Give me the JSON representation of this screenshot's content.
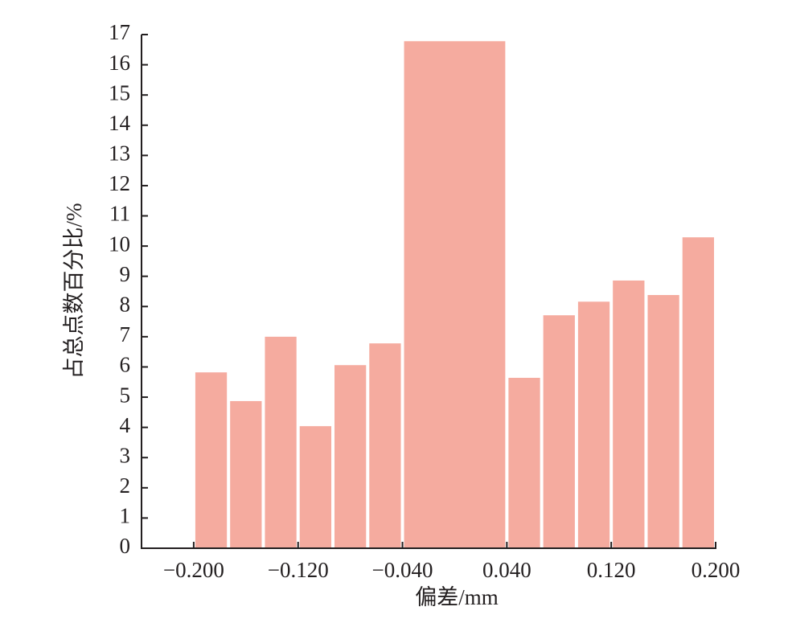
{
  "chart_data": {
    "type": "histogram",
    "y_label": "占总点数百分比/%",
    "x_label": "偏差/mm",
    "bins": [
      -0.2,
      -0.17333,
      -0.14667,
      -0.12,
      -0.09333,
      -0.06667,
      -0.04,
      0.04,
      0.06667,
      0.09333,
      0.12,
      0.14667,
      0.17333,
      0.2
    ],
    "values": [
      5.82,
      4.87,
      7.0,
      4.04,
      6.06,
      6.78,
      16.78,
      5.64,
      7.71,
      8.16,
      8.86,
      8.38,
      10.29
    ],
    "color": "#f5ab9f",
    "xlim": [
      -0.24,
      0.2
    ],
    "ylim": [
      0,
      17
    ],
    "xticks": [
      {
        "value": -0.2,
        "label": "−0.200"
      },
      {
        "value": -0.12,
        "label": "−0.120"
      },
      {
        "value": -0.04,
        "label": "−0.040"
      },
      {
        "value": 0.04,
        "label": "0.040"
      },
      {
        "value": 0.12,
        "label": "0.120"
      },
      {
        "value": 0.2,
        "label": "0.200"
      }
    ],
    "yticks": [
      0,
      1,
      2,
      3,
      4,
      5,
      6,
      7,
      8,
      9,
      10,
      11,
      12,
      13,
      14,
      15,
      16,
      17
    ]
  }
}
